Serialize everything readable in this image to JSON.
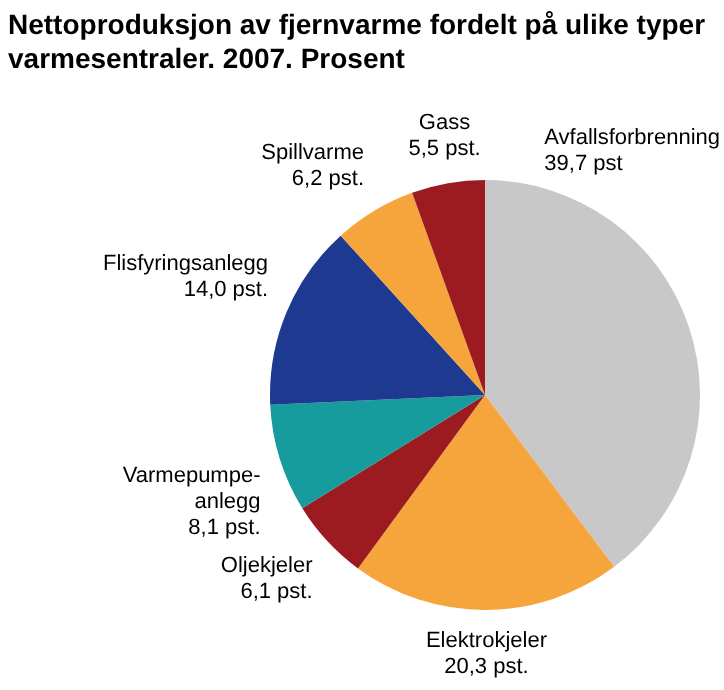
{
  "chart_data": {
    "type": "pie",
    "title": "Nettoproduksjon av fjernvarme fordelt på ulike typer varmesentraler. 2007. Prosent",
    "categories": [
      "Avfallsforbrenning",
      "Elektrokjeler",
      "Oljekjeler",
      "Varmepumpe-anlegg",
      "Flisfyringsanlegg",
      "Spillvarme",
      "Gass"
    ],
    "values": [
      39.7,
      20.3,
      6.1,
      8.1,
      14.0,
      6.2,
      5.5
    ],
    "value_labels": [
      "39,7 pst",
      "20,3 pst.",
      "6,1 pst.",
      "8,1 pst.",
      "14,0 pst.",
      "6,2 pst.",
      "5,5 pst."
    ],
    "colors": [
      "#c8c8c8",
      "#f6a43c",
      "#9b1b21",
      "#169c9c",
      "#1d3990",
      "#f6a43c",
      "#9b1b21"
    ],
    "legend": false
  }
}
